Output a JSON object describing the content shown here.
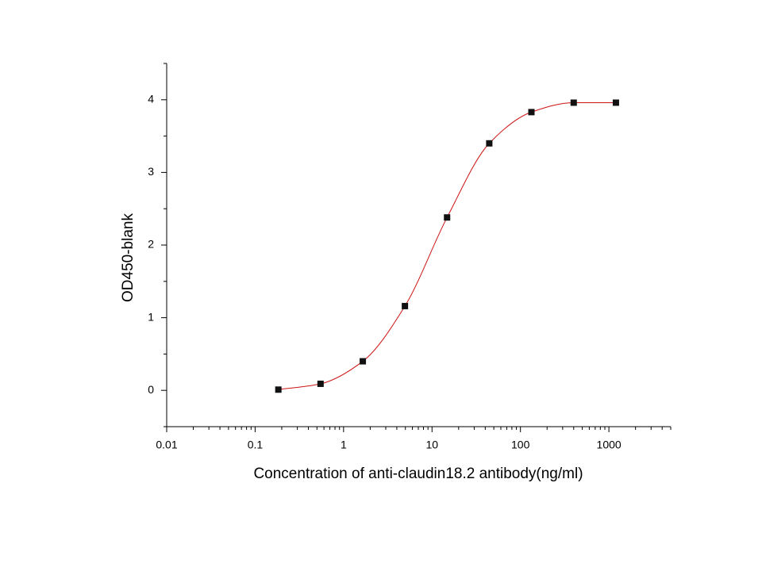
{
  "chart_data": {
    "type": "scatter-line",
    "x_label": "Concentration of anti-claudin18.2 antibody(ng/ml)",
    "y_label": "OD450-blank",
    "x": [
      0.183,
      0.549,
      1.65,
      4.94,
      14.8,
      44.4,
      133,
      400,
      1200
    ],
    "values": [
      0.01,
      0.09,
      0.4,
      1.16,
      2.38,
      3.4,
      3.83,
      3.96,
      3.96
    ],
    "marker_color": "#111111",
    "line_color": "#cc1111",
    "xscale": "log",
    "xlim": [
      0.01,
      5000
    ],
    "xticks": [
      0.01,
      0.1,
      1,
      10,
      100,
      1000
    ],
    "xminorticks": [
      0.02,
      0.03,
      0.04,
      0.05,
      0.06,
      0.07,
      0.08,
      0.09,
      0.2,
      0.3,
      0.4,
      0.5,
      0.6,
      0.7,
      0.8,
      0.9,
      2,
      3,
      4,
      5,
      6,
      7,
      8,
      9,
      20,
      30,
      40,
      50,
      60,
      70,
      80,
      90,
      200,
      300,
      400,
      500,
      600,
      700,
      800,
      900,
      2000,
      3000,
      4000,
      5000
    ],
    "ylim": [
      -0.5,
      4.5
    ],
    "yticks": [
      0,
      1,
      2,
      3,
      4
    ],
    "yminorticks": [
      -0.5,
      0.5,
      1.5,
      2.5,
      3.5,
      4.5
    ]
  }
}
